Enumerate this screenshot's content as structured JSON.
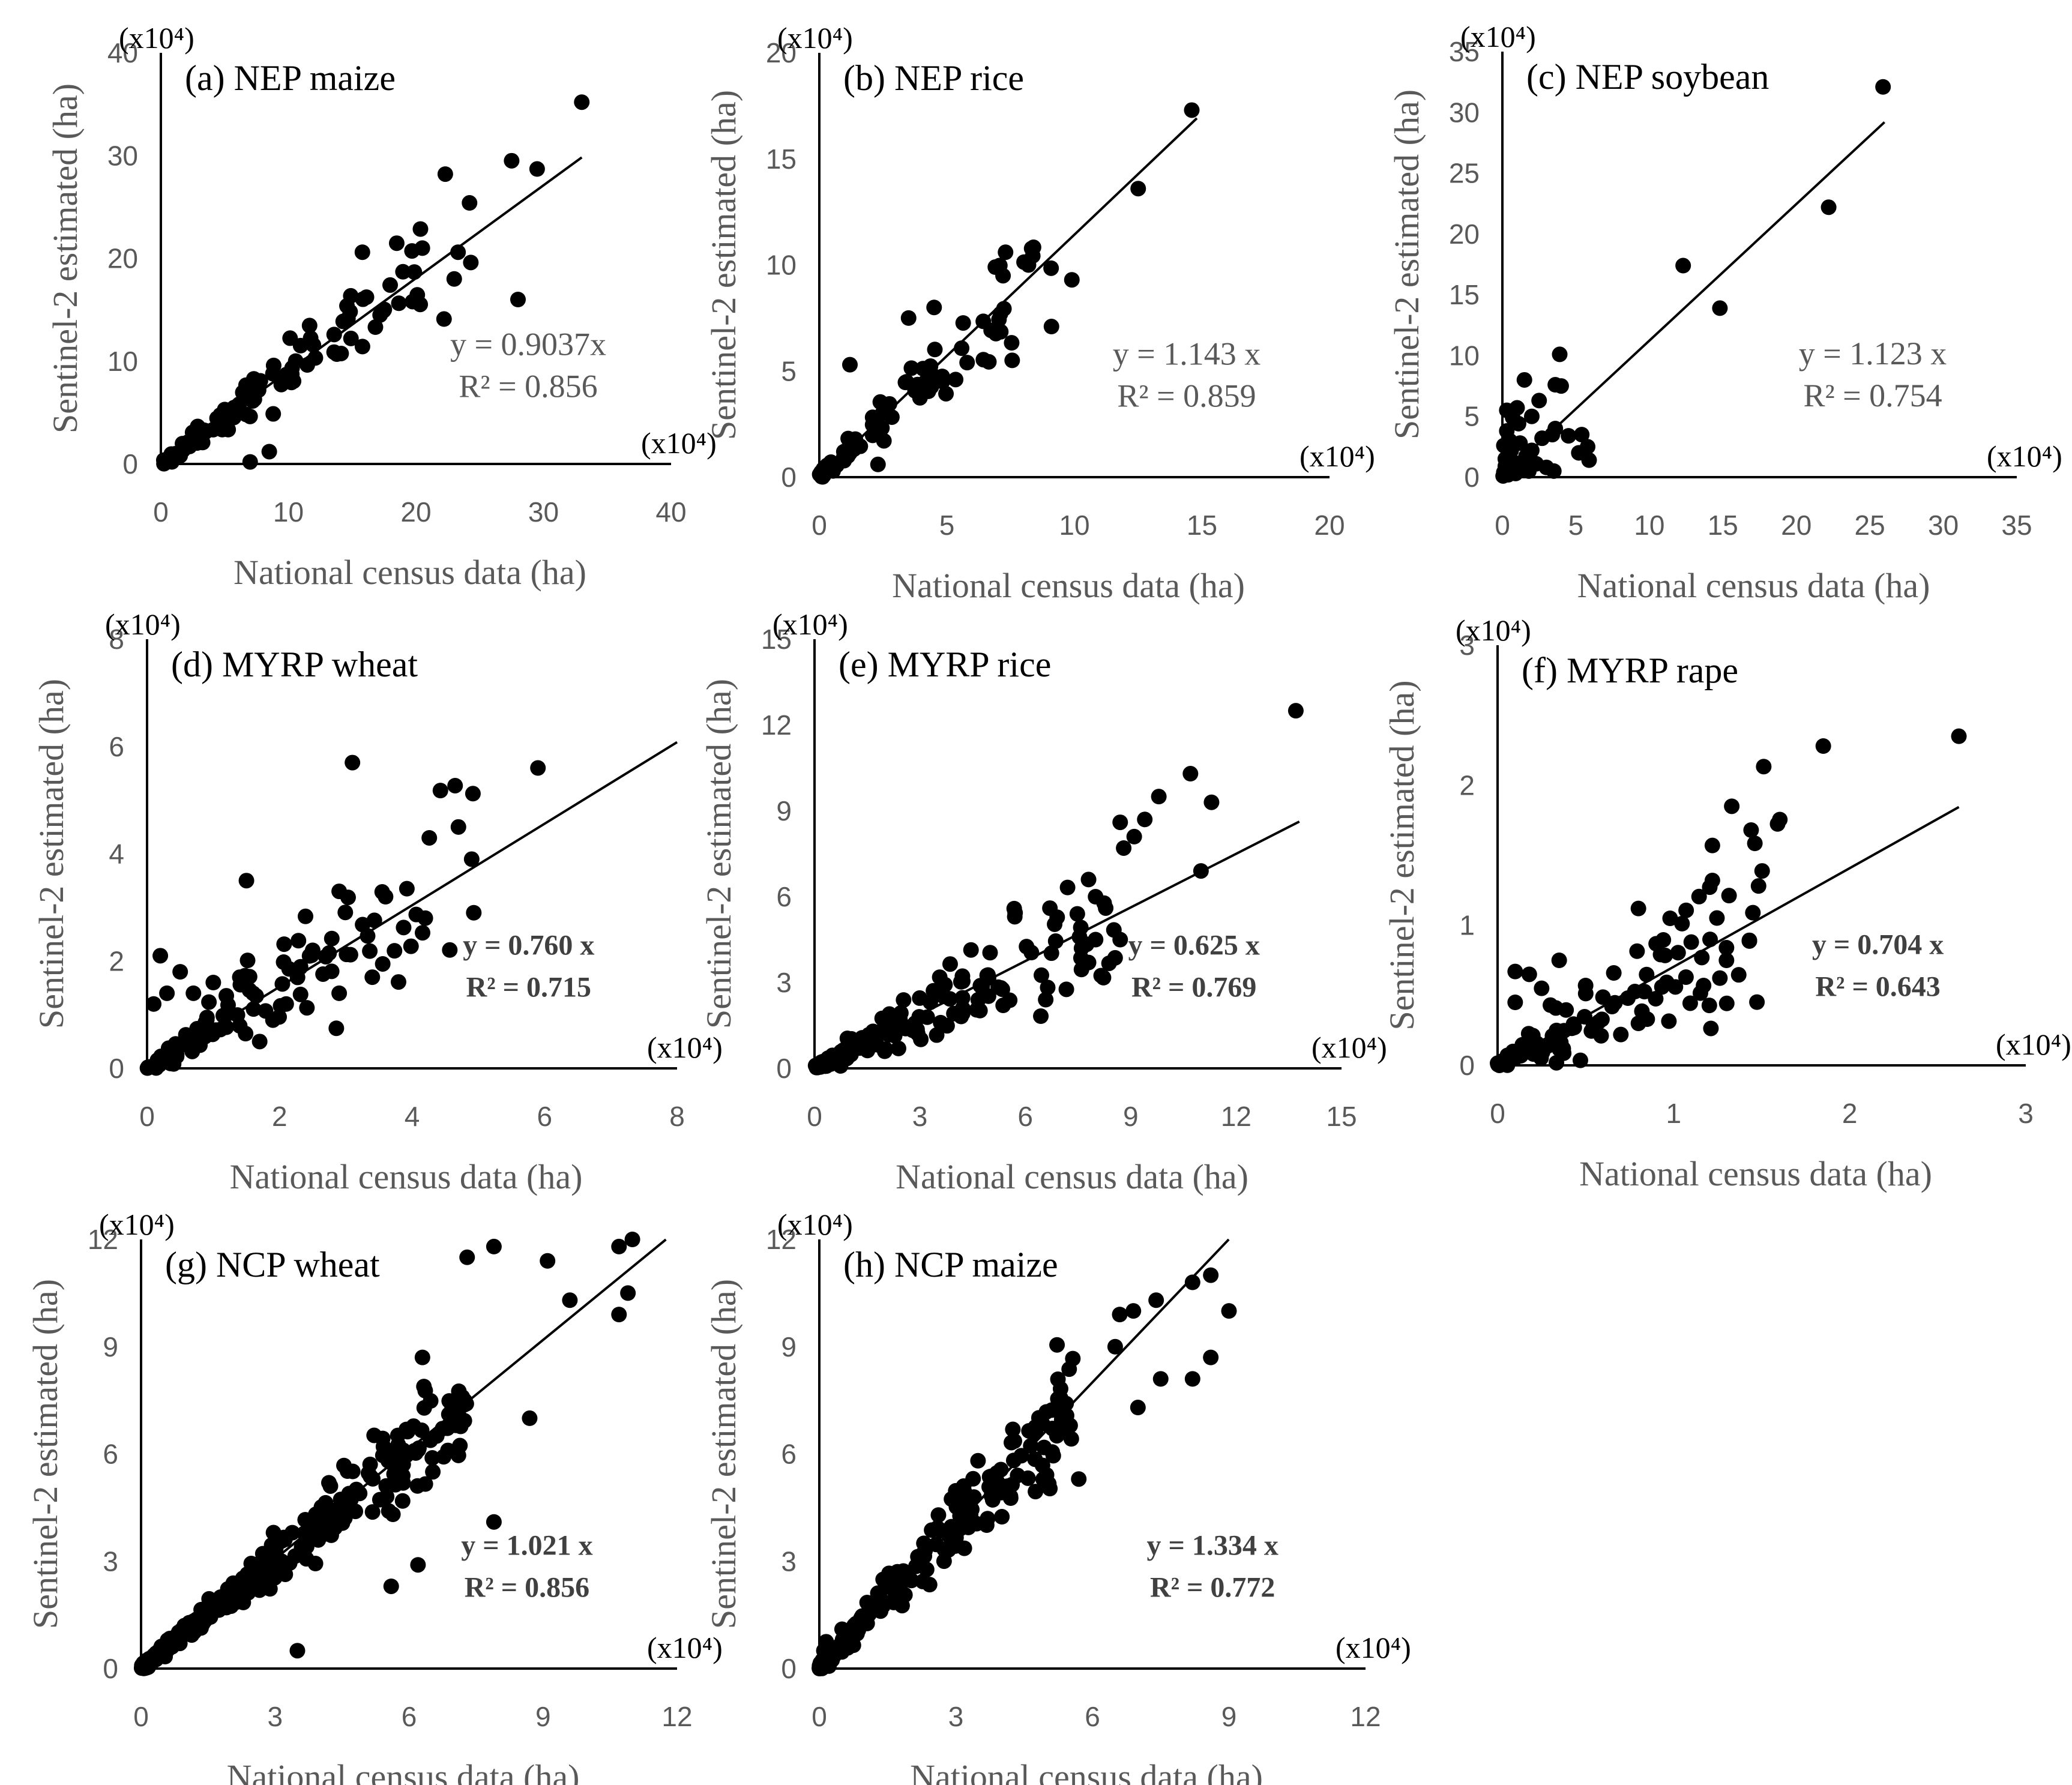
{
  "figure": {
    "x_label": "National census data (ha)",
    "y_label": "Sentinel-2 estimated (ha)",
    "ink_color": "#000000",
    "tick_color": "#595959"
  },
  "chart_data": [
    {
      "type": "scatter",
      "title": "(a) NEP maize",
      "scale": "(x10⁴)",
      "xlim": [
        0,
        40
      ],
      "ylim": [
        0,
        40
      ],
      "xticks": [
        "0",
        "10",
        "20",
        "30",
        "40"
      ],
      "yticks": [
        "0",
        "10",
        "20",
        "30",
        "40"
      ],
      "slope": 0.9037,
      "fit_xmax": 33,
      "eq": "y = 0.9037x",
      "r2": "R² = 0.856",
      "bold": false,
      "seed": 11,
      "n_random": 100,
      "spread": 0.27,
      "points": [
        [
          33,
          35.2
        ],
        [
          27.5,
          29.5
        ],
        [
          29.5,
          28.7
        ],
        [
          22.3,
          28.2
        ],
        [
          24.2,
          25.4
        ],
        [
          20.5,
          21
        ],
        [
          15.8,
          20.6
        ],
        [
          23.3,
          20.6
        ],
        [
          24.3,
          19.6
        ],
        [
          23,
          18
        ],
        [
          28,
          16
        ],
        [
          22.2,
          14.1
        ],
        [
          8.5,
          1.2
        ],
        [
          7,
          0.2
        ]
      ]
    },
    {
      "type": "scatter",
      "title": "(b) NEP rice",
      "scale": "(x10⁴)",
      "xlim": [
        0,
        20
      ],
      "ylim": [
        0,
        20
      ],
      "xticks": [
        "0",
        "5",
        "10",
        "15",
        "20"
      ],
      "yticks": [
        "0",
        "5",
        "10",
        "15",
        "20"
      ],
      "slope": 1.143,
      "fit_xmax": 14.8,
      "eq": "y = 1.143 x",
      "r2": "R² = 0.859",
      "bold": false,
      "seed": 23,
      "n_random": 85,
      "spread": 0.33,
      "points": [
        [
          14.6,
          17.3
        ],
        [
          12.5,
          13.6
        ],
        [
          7.3,
          10.6
        ],
        [
          8.2,
          10
        ],
        [
          6.9,
          9.9
        ],
        [
          9.9,
          9.3
        ],
        [
          9.1,
          7.1
        ],
        [
          7.1,
          7.7
        ],
        [
          4.5,
          8
        ],
        [
          3.5,
          7.5
        ],
        [
          1.2,
          5.3
        ],
        [
          2.3,
          0.6
        ]
      ]
    },
    {
      "type": "scatter",
      "title": "(c) NEP soybean",
      "scale": "(x10⁴)",
      "xlim": [
        0,
        35
      ],
      "ylim": [
        0,
        35
      ],
      "xticks": [
        "0",
        "5",
        "10",
        "15",
        "20",
        "25",
        "30",
        "35"
      ],
      "yticks": [
        "0",
        "5",
        "10",
        "15",
        "20",
        "25",
        "30",
        "35"
      ],
      "slope": 1.123,
      "fit_xmax": 26,
      "eq": "y = 1.123 x",
      "r2": "R² = 0.754",
      "bold": false,
      "seed": 37,
      "n_random": 0,
      "spread": 0.3,
      "points": [
        [
          25.9,
          32.1
        ],
        [
          22.2,
          22.2
        ],
        [
          12.3,
          17.4
        ],
        [
          14.8,
          13.9
        ],
        [
          3.9,
          10.1
        ],
        [
          3.6,
          7.6
        ],
        [
          4,
          7.5
        ],
        [
          1.5,
          8
        ],
        [
          2.5,
          6.3
        ],
        [
          1,
          5.7
        ],
        [
          2,
          5
        ],
        [
          0.3,
          5.5
        ],
        [
          3.6,
          4
        ],
        [
          3.4,
          3.5
        ],
        [
          4.5,
          3.4
        ],
        [
          5.4,
          3.5
        ],
        [
          5.8,
          2.5
        ],
        [
          5.2,
          2
        ],
        [
          5.9,
          1.4
        ],
        [
          3.5,
          0.5
        ],
        [
          3,
          0.8
        ],
        [
          0.5,
          3
        ],
        [
          0.6,
          2.2
        ],
        [
          1.2,
          2.8
        ],
        [
          2,
          2.2
        ],
        [
          0.2,
          1.5
        ],
        [
          0.8,
          1.2
        ],
        [
          1.4,
          0.9
        ],
        [
          0.1,
          0.4
        ],
        [
          0.4,
          0.2
        ],
        [
          0.9,
          0.3
        ],
        [
          0.2,
          0.9
        ],
        [
          1.8,
          0.5
        ],
        [
          0.3,
          3.8
        ],
        [
          1.1,
          4.4
        ],
        [
          2.7,
          3.2
        ],
        [
          0.6,
          0.7
        ],
        [
          0.1,
          2.6
        ],
        [
          1.6,
          1.7
        ],
        [
          2.3,
          1.1
        ],
        [
          0.05,
          0.1
        ],
        [
          0.7,
          4.9
        ]
      ]
    },
    {
      "type": "scatter",
      "title": "(d) MYRP wheat",
      "scale": "(x10⁴)",
      "xlim": [
        0,
        8
      ],
      "ylim": [
        0,
        8
      ],
      "xticks": [
        "0",
        "2",
        "4",
        "6",
        "8"
      ],
      "yticks": [
        "0",
        "2",
        "4",
        "6",
        "8"
      ],
      "slope": 0.76,
      "fit_xmax": 8,
      "eq": "y = 0.760 x",
      "r2": "R² = 0.715",
      "bold": true,
      "seed": 41,
      "n_random": 105,
      "spread": 0.5,
      "points": [
        [
          3.1,
          5.7
        ],
        [
          5.9,
          5.6
        ],
        [
          4.7,
          4.5
        ],
        [
          4.9,
          3.9
        ],
        [
          1.5,
          3.5
        ],
        [
          3.6,
          3.2
        ],
        [
          2.9,
          3.3
        ],
        [
          4.2,
          2.8
        ],
        [
          2.5,
          2.2
        ],
        [
          3.4,
          1.7
        ],
        [
          2.9,
          1.4
        ],
        [
          0.2,
          2.1
        ],
        [
          0.5,
          1.8
        ],
        [
          1,
          1.6
        ],
        [
          1.4,
          1.7
        ],
        [
          0.3,
          1.4
        ],
        [
          2.1,
          1.2
        ],
        [
          1.9,
          0.9
        ],
        [
          0.1,
          1.2
        ],
        [
          1.7,
          0.5
        ],
        [
          0.7,
          1.4
        ],
        [
          1.6,
          1.4
        ]
      ]
    },
    {
      "type": "scatter",
      "title": "(e) MYRP rice",
      "scale": "(x10⁴)",
      "xlim": [
        0,
        15
      ],
      "ylim": [
        0,
        15
      ],
      "xticks": [
        "0",
        "3",
        "6",
        "9",
        "12",
        "15"
      ],
      "yticks": [
        "0",
        "3",
        "6",
        "9",
        "12",
        "15"
      ],
      "slope": 0.625,
      "fit_xmax": 13.8,
      "eq": "y = 0.625 x",
      "r2": "R² = 0.769",
      "bold": true,
      "seed": 53,
      "n_random": 140,
      "spread": 0.45,
      "points": [
        [
          13.7,
          12.5
        ],
        [
          10.7,
          10.3
        ],
        [
          9.8,
          9.5
        ],
        [
          9.4,
          8.7
        ],
        [
          8.7,
          8.6
        ],
        [
          11.3,
          9.3
        ],
        [
          9.1,
          8.1
        ],
        [
          8.8,
          7.7
        ],
        [
          11,
          6.9
        ],
        [
          7.8,
          6.6
        ],
        [
          6.7,
          5.6
        ],
        [
          8,
          6
        ],
        [
          5.7,
          5.3
        ],
        [
          7.6,
          4.2
        ],
        [
          8,
          4.5
        ],
        [
          8.7,
          4.5
        ],
        [
          7.8,
          3.7
        ]
      ]
    },
    {
      "type": "scatter",
      "title": "(f) MYRP rape",
      "scale": "(x10⁴)",
      "xlim": [
        0,
        3
      ],
      "ylim": [
        0,
        3
      ],
      "xticks": [
        "0",
        "1",
        "2",
        "3"
      ],
      "yticks": [
        "0",
        "1",
        "2",
        "3"
      ],
      "slope": 0.704,
      "fit_xmax": 2.62,
      "eq": "y = 0.704 x",
      "r2": "R² = 0.643",
      "bold": true,
      "seed": 67,
      "n_random": 100,
      "spread": 0.7,
      "points": [
        [
          2.62,
          2.35
        ],
        [
          1.85,
          2.28
        ],
        [
          1.33,
          1.85
        ],
        [
          1.44,
          1.68
        ],
        [
          1.22,
          1.57
        ],
        [
          1.22,
          1.32
        ],
        [
          1.45,
          1.09
        ],
        [
          0.8,
          1.12
        ],
        [
          0.98,
          1.05
        ],
        [
          1.1,
          0.88
        ],
        [
          1.16,
          0.77
        ],
        [
          1.3,
          0.84
        ],
        [
          1.3,
          0.75
        ],
        [
          1.01,
          0.56
        ],
        [
          1.07,
          0.63
        ],
        [
          1.17,
          0.57
        ],
        [
          0.1,
          0.67
        ],
        [
          0.18,
          0.65
        ],
        [
          0.35,
          0.75
        ],
        [
          0.66,
          0.66
        ],
        [
          0.5,
          0.57
        ],
        [
          0.25,
          0.55
        ],
        [
          0.74,
          0.48
        ],
        [
          0.65,
          0.42
        ],
        [
          0.1,
          0.45
        ],
        [
          0.3,
          0.43
        ],
        [
          0.8,
          0.3
        ],
        [
          0.85,
          0.33
        ],
        [
          0.7,
          0.22
        ]
      ]
    },
    {
      "type": "scatter",
      "title": "(g) NCP wheat",
      "scale": "(x10⁴)",
      "xlim": [
        0,
        12
      ],
      "ylim": [
        0,
        12
      ],
      "xticks": [
        "0",
        "3",
        "6",
        "9",
        "12"
      ],
      "yticks": [
        "0",
        "3",
        "6",
        "9",
        "12"
      ],
      "slope": 1.021,
      "fit_xmax": 11.75,
      "eq": "y = 1.021 x",
      "r2": "R² = 0.856",
      "bold": true,
      "seed": 79,
      "n_random": 290,
      "spread": 0.18,
      "points": [
        [
          11,
          12
        ],
        [
          10.7,
          11.8
        ],
        [
          7.3,
          11.5
        ],
        [
          7.9,
          11.8
        ],
        [
          9.1,
          11.4
        ],
        [
          10.9,
          10.5
        ],
        [
          10.7,
          9.9
        ],
        [
          9.6,
          10.3
        ],
        [
          7.9,
          4.1
        ],
        [
          5.6,
          2.3
        ],
        [
          6.2,
          2.9
        ],
        [
          3.5,
          0.5
        ],
        [
          8.7,
          7
        ],
        [
          6.3,
          8.7
        ]
      ]
    },
    {
      "type": "scatter",
      "title": "(h) NCP maize",
      "scale": "(x10⁴)",
      "xlim": [
        0,
        12
      ],
      "ylim": [
        0,
        12
      ],
      "xticks": [
        "0",
        "3",
        "6",
        "9",
        "12"
      ],
      "yticks": [
        "0",
        "3",
        "6",
        "9",
        "12"
      ],
      "slope": 1.334,
      "fit_xmax": 9,
      "eq": "y = 1.334 x",
      "r2": "R² = 0.772",
      "bold": true,
      "seed": 97,
      "n_random": 200,
      "spread": 0.22,
      "points": [
        [
          8.6,
          11
        ],
        [
          8.2,
          10.8
        ],
        [
          7.4,
          10.3
        ],
        [
          6.6,
          9.9
        ],
        [
          6.9,
          10
        ],
        [
          9,
          10
        ],
        [
          6.5,
          9
        ],
        [
          8.6,
          8.7
        ],
        [
          8.2,
          8.1
        ],
        [
          7.5,
          8.1
        ],
        [
          7,
          7.3
        ],
        [
          5.7,
          5.3
        ],
        [
          0.1,
          0.5
        ],
        [
          0.15,
          0.75
        ],
        [
          0.5,
          1.1
        ],
        [
          0.8,
          1.2
        ]
      ]
    }
  ]
}
